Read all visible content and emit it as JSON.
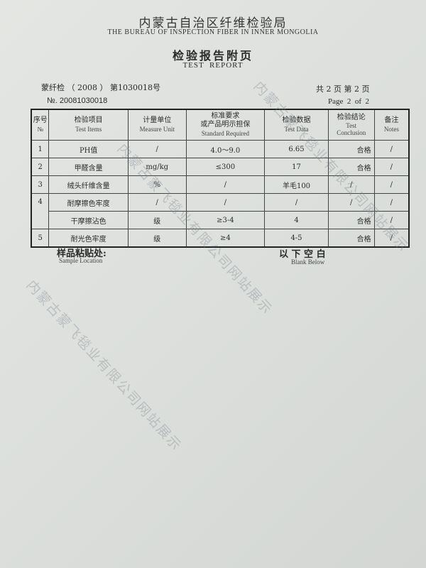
{
  "header": {
    "org_cn": "内蒙古自治区纤维检验局",
    "org_en": "THE BUREAU OF INSPECTION FIBER IN INNER MONGOLIA",
    "title_cn": "检验报告附页",
    "title_en": "TEST  REPORT"
  },
  "meta": {
    "ref": "蒙纤检 （ 2008 ） 第1030018号",
    "number": "№. 20081030018",
    "pages_cn": "共 2 页  第 2 页",
    "pages_en": "Page  2  of  2"
  },
  "table": {
    "headers": [
      {
        "cn": "序号",
        "en": "№"
      },
      {
        "cn": "检验项目",
        "en": "Test Items"
      },
      {
        "cn": "计量单位",
        "en": "Measure Unit"
      },
      {
        "cn": "标准要求\n或产品明示担保",
        "en": "Standard Required"
      },
      {
        "cn": "检验数据",
        "en": "Test Data"
      },
      {
        "cn": "检验结论",
        "en": "Test Conclusion"
      },
      {
        "cn": "备注",
        "en": "Notes"
      }
    ],
    "rows": [
      [
        "1",
        "PH值",
        "/",
        "4.0～9.0",
        "6.65",
        "合格",
        "/"
      ],
      [
        "2",
        "甲醛含量",
        "mg/kg",
        "≤300",
        "17",
        "合格",
        "/"
      ],
      [
        "3",
        "绒头纤维含量",
        "%",
        "/",
        "羊毛100",
        "/",
        "/"
      ],
      [
        "4",
        "耐摩擦色牢度",
        "/",
        "/",
        "/",
        "/",
        "/"
      ],
      [
        "",
        "干摩擦沾色",
        "级",
        "≥3-4",
        "4",
        "合格",
        "/"
      ],
      [
        "5",
        "耐光色牢度",
        "级",
        "≥4",
        "4-5",
        "合格",
        "/"
      ]
    ]
  },
  "footer": {
    "sample_cn": "样品粘贴处:",
    "sample_en": "Sample Location",
    "blank_cn": "以 下 空 白",
    "blank_en": "Blank Below"
  },
  "watermark": "内蒙古蒙飞毯业有限公司网站展示"
}
